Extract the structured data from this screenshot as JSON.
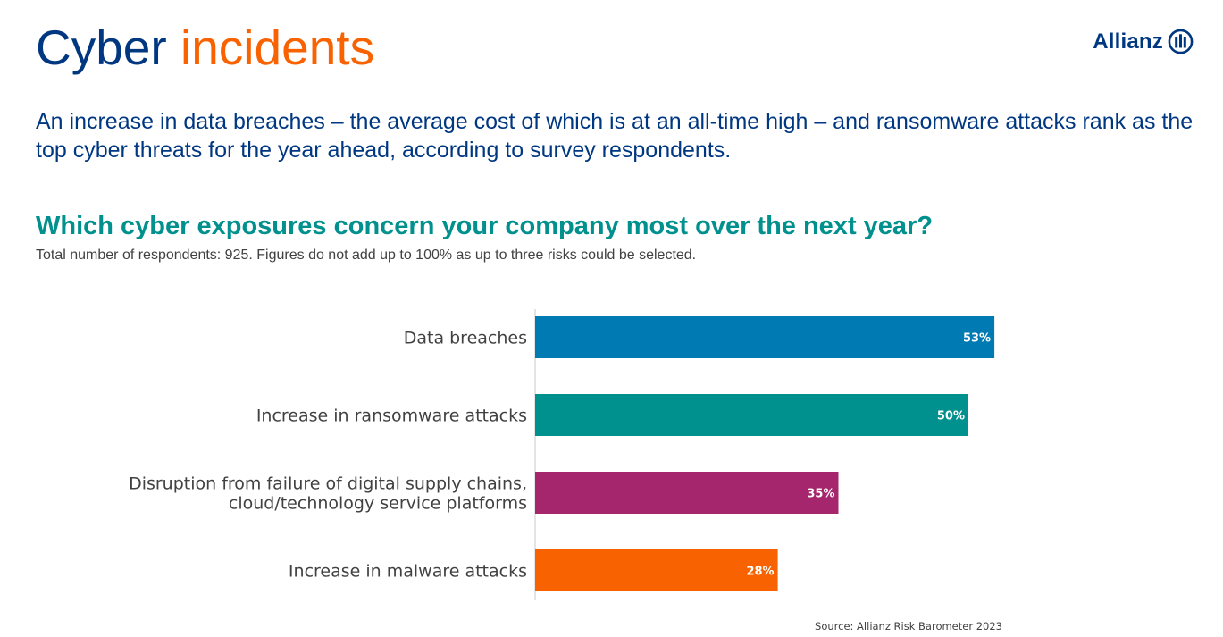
{
  "header": {
    "title_part1": "Cyber",
    "title_part2": "incidents",
    "logo_text": "Allianz",
    "colors": {
      "navy": "#003781",
      "orange": "#f86200",
      "teal": "#00908d"
    }
  },
  "intro": "An increase in data breaches – the average cost of which is at an all-time high – and ransomware attacks rank as the top cyber threats for the year ahead, according to survey respondents.",
  "chart_data": {
    "type": "bar",
    "orientation": "horizontal",
    "title": "Which cyber exposures concern your company most over the next year?",
    "subtitle": "Total number of respondents: 925. Figures do not add up to 100% as up to three risks could be selected.",
    "categories": [
      "Data breaches",
      "Increase in ransomware attacks",
      "Disruption from failure of digital supply chains, cloud/technology service platforms",
      "Increase in malware attacks"
    ],
    "category_lines": [
      [
        "Data breaches"
      ],
      [
        "Increase in ransomware attacks"
      ],
      [
        "Disruption from failure of digital supply chains,",
        "cloud/technology service platforms"
      ],
      [
        "Increase in malware attacks"
      ]
    ],
    "values": [
      53,
      50,
      35,
      28
    ],
    "value_labels": [
      "53%",
      "50%",
      "35%",
      "28%"
    ],
    "bar_colors": [
      "#007ab3",
      "#00908d",
      "#a6266e",
      "#f86200"
    ],
    "unit": "%",
    "xlim": [
      0,
      55
    ],
    "xlabel": "",
    "ylabel": "",
    "grid": false,
    "legend": "none",
    "source": "Source: Allianz Risk Barometer 2023"
  }
}
